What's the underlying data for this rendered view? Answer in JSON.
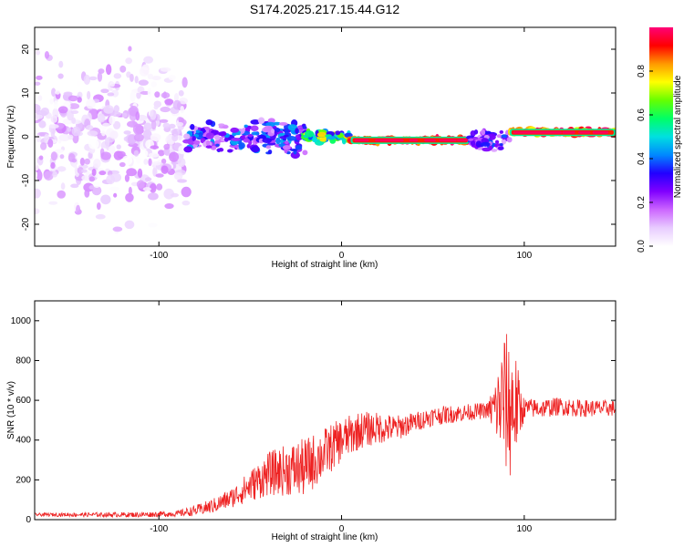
{
  "title": "S174.2025.217.15.44.G12",
  "chart_data": [
    {
      "type": "heatmap",
      "xlabel": "Height of straight line (km)",
      "ylabel": "Frequency (Hz)",
      "xlim": [
        -168,
        150
      ],
      "ylim": [
        -25,
        25
      ],
      "xticks": [
        -100,
        0,
        100
      ],
      "yticks": [
        -20,
        -10,
        0,
        10,
        20
      ],
      "colorbar": {
        "label": "Normalized spectral amplitude",
        "range": [
          0,
          1
        ],
        "ticks": [
          "0.0",
          "0.2",
          "0.4",
          "0.6",
          "0.8"
        ],
        "colors": [
          "#ffffff",
          "#e8ccff",
          "#cc66ff",
          "#8000ff",
          "#2200ff",
          "#0088ff",
          "#00e0e0",
          "#00ff66",
          "#66ff00",
          "#ffff00",
          "#ff9900",
          "#ff0000",
          "#ff0077"
        ]
      },
      "regions": [
        {
          "x": [
            -168,
            -85
          ],
          "freq_center": 0,
          "freq_spread": 25,
          "amplitude": [
            0.0,
            0.15
          ],
          "density": "dense"
        },
        {
          "x": [
            -85,
            -20
          ],
          "freq_center": 0,
          "freq_spread": 5,
          "amplitude": [
            0.1,
            0.45
          ]
        },
        {
          "x": [
            -20,
            5
          ],
          "freq_center": 0,
          "freq_spread": 2,
          "amplitude": [
            0.3,
            0.8
          ]
        },
        {
          "x": [
            5,
            70
          ],
          "freq_center": -0.8,
          "freq_spread": 0.8,
          "amplitude": [
            0.8,
            1.0
          ]
        },
        {
          "x": [
            70,
            92
          ],
          "freq_center": -0.5,
          "freq_spread": 3,
          "amplitude": [
            0.1,
            0.4
          ]
        },
        {
          "x": [
            92,
            150
          ],
          "freq_center": 1,
          "freq_spread": 1,
          "amplitude": [
            0.7,
            1.0
          ]
        }
      ]
    },
    {
      "type": "line",
      "xlabel": "Height of straight line (km)",
      "ylabel": "SNR (10 * v/v)",
      "xlim": [
        -168,
        150
      ],
      "ylim": [
        0,
        1100
      ],
      "xticks": [
        -100,
        0,
        100
      ],
      "yticks": [
        0,
        200,
        400,
        600,
        800,
        1000
      ],
      "series_color": "#ee2222",
      "envelope": {
        "x": [
          -168,
          -110,
          -90,
          -80,
          -70,
          -60,
          -50,
          -40,
          -30,
          -20,
          -10,
          0,
          10,
          20,
          30,
          40,
          50,
          60,
          70,
          80,
          85,
          89,
          92,
          95,
          98,
          100,
          110,
          120,
          130,
          140,
          150
        ],
        "y": [
          25,
          25,
          30,
          45,
          70,
          110,
          170,
          230,
          250,
          260,
          330,
          400,
          450,
          460,
          460,
          490,
          520,
          530,
          540,
          550,
          560,
          600,
          560,
          580,
          550,
          560,
          560,
          570,
          560,
          560,
          560
        ]
      },
      "noise": {
        "x": [
          -168,
          -90,
          -60,
          -40,
          -20,
          0,
          40,
          80,
          85,
          89,
          93,
          97,
          100,
          150
        ],
        "amplitude": [
          8,
          15,
          50,
          110,
          150,
          110,
          50,
          40,
          180,
          350,
          380,
          180,
          50,
          40
        ]
      }
    }
  ]
}
